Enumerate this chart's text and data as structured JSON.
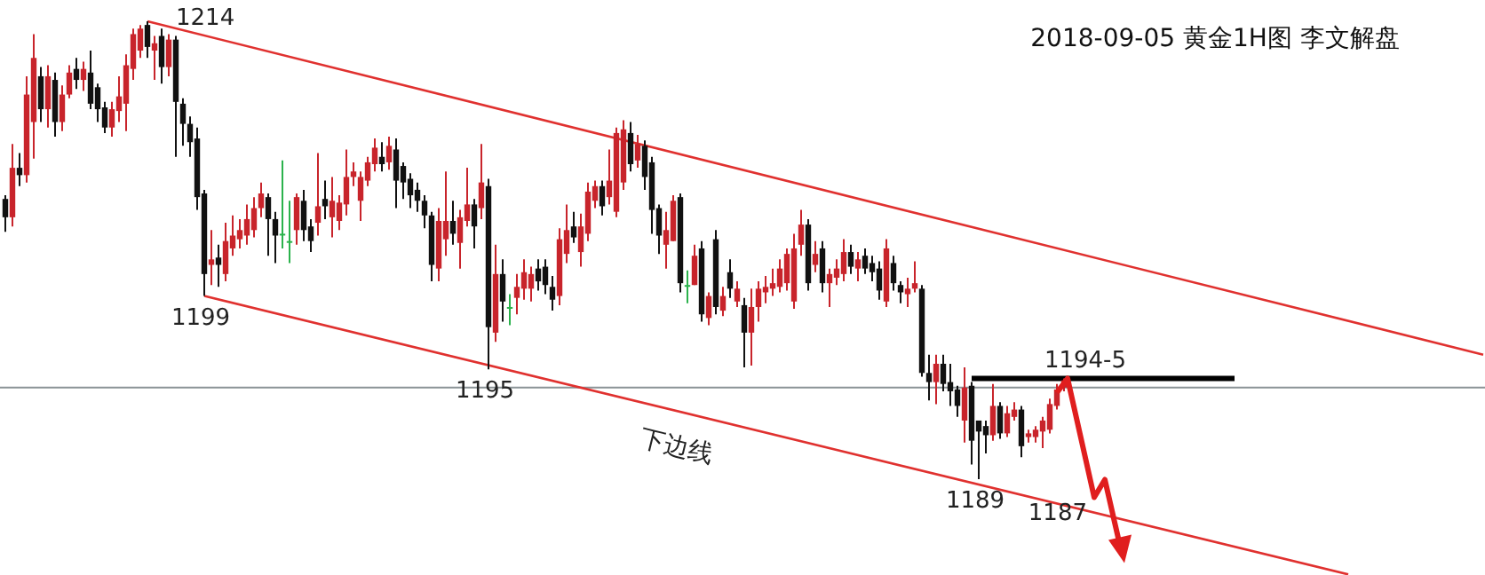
{
  "chart_data": {
    "type": "candlestick",
    "title": "2018-09-05 黄金1H图 李文解盘",
    "categories": [
      null,
      null,
      null,
      null,
      null,
      null,
      null,
      null,
      null,
      null,
      null,
      null,
      null,
      null,
      null,
      null,
      null,
      null,
      null,
      null,
      null,
      null,
      null,
      null,
      null,
      null,
      null,
      null,
      null,
      null,
      null,
      null,
      null,
      null,
      null,
      null,
      null,
      null,
      null,
      null,
      null,
      null,
      null,
      null,
      null,
      null,
      null,
      null,
      null,
      null,
      null,
      null,
      null,
      null,
      null,
      null,
      null,
      null,
      null,
      null,
      null,
      null,
      null,
      null,
      null,
      null,
      null,
      null,
      null,
      null,
      null,
      null,
      null,
      null,
      null,
      null,
      null,
      null,
      null,
      null,
      null,
      null,
      null,
      null,
      null,
      null,
      null,
      null,
      null,
      null,
      null,
      null,
      null,
      null,
      null,
      null,
      null,
      null,
      null,
      null,
      null,
      null,
      null,
      null,
      null,
      null,
      null,
      null,
      null,
      null,
      null,
      null,
      null,
      null,
      null,
      null,
      null,
      null,
      null,
      null,
      null,
      null,
      null,
      null,
      null,
      null,
      null,
      null,
      null,
      null,
      null,
      null,
      null,
      null,
      null,
      null,
      null,
      null,
      null,
      null,
      null,
      null,
      null,
      null,
      null,
      null,
      null,
      null,
      null,
      null,
      null,
      null,
      null,
      null,
      null,
      null,
      null,
      null,
      null,
      null,
      null,
      null,
      null,
      null,
      null,
      null,
      null,
      null,
      null,
      null,
      null,
      null,
      null,
      null,
      null,
      null,
      null,
      null,
      null,
      null,
      null,
      null,
      null,
      null,
      null,
      null,
      null,
      null,
      null,
      null,
      null,
      null,
      null,
      null,
      null,
      null,
      null,
      null,
      null,
      null,
      null,
      null,
      null,
      null,
      null,
      null,
      null,
      null,
      null
    ],
    "ohlc": [
      [
        1204.3,
        1204.5,
        1202.5,
        1203.3
      ],
      [
        1203.3,
        1207.3,
        1202.8,
        1206.0
      ],
      [
        1206.0,
        1206.8,
        1205.0,
        1205.6
      ],
      [
        1205.6,
        1211.0,
        1205.2,
        1210.0
      ],
      [
        1208.5,
        1213.3,
        1206.5,
        1212.0
      ],
      [
        1211.0,
        1211.5,
        1208.5,
        1209.2
      ],
      [
        1209.2,
        1211.6,
        1208.2,
        1211.0
      ],
      [
        1210.8,
        1211.2,
        1207.7,
        1208.5
      ],
      [
        1208.5,
        1210.5,
        1208.0,
        1210.0
      ],
      [
        1210.0,
        1211.6,
        1209.8,
        1211.2
      ],
      [
        1211.4,
        1212.0,
        1210.3,
        1210.8
      ],
      [
        1210.8,
        1211.8,
        1210.2,
        1211.4
      ],
      [
        1211.2,
        1212.4,
        1209.2,
        1209.5
      ],
      [
        1210.4,
        1210.6,
        1208.5,
        1209.2
      ],
      [
        1209.3,
        1209.6,
        1207.9,
        1208.2
      ],
      [
        1208.2,
        1209.6,
        1207.7,
        1209.2
      ],
      [
        1209.1,
        1211.0,
        1208.5,
        1209.9
      ],
      [
        1209.5,
        1212.2,
        1208.0,
        1211.6
      ],
      [
        1211.4,
        1213.6,
        1210.8,
        1213.3
      ],
      [
        1212.4,
        1213.8,
        1212.0,
        1213.6
      ],
      [
        1213.8,
        1214.0,
        1212.0,
        1212.6
      ],
      [
        1212.4,
        1213.2,
        1210.8,
        1212.8
      ],
      [
        1213.2,
        1213.6,
        1210.6,
        1211.5
      ],
      [
        1211.5,
        1213.3,
        1211.0,
        1213.0
      ],
      [
        1213.0,
        1213.2,
        1206.6,
        1209.6
      ],
      [
        1209.5,
        1209.8,
        1207.2,
        1208.4
      ],
      [
        1208.4,
        1208.8,
        1206.6,
        1207.4
      ],
      [
        1207.6,
        1208.2,
        1203.7,
        1204.4
      ],
      [
        1204.6,
        1204.8,
        1199.0,
        1200.2
      ],
      [
        1200.7,
        1202.6,
        1199.6,
        1201.0
      ],
      [
        1201.1,
        1201.8,
        1199.5,
        1200.7
      ],
      [
        1200.2,
        1203.0,
        1199.8,
        1202.0
      ],
      [
        1201.6,
        1203.4,
        1201.2,
        1202.3
      ],
      [
        1202.1,
        1203.2,
        1201.6,
        1202.6
      ],
      [
        1202.3,
        1204.0,
        1201.8,
        1203.2
      ],
      [
        1202.6,
        1204.4,
        1202.2,
        1203.8
      ],
      [
        1203.8,
        1205.2,
        1203.3,
        1204.6
      ],
      [
        1204.4,
        1204.6,
        1201.2,
        1203.2
      ],
      [
        1203.2,
        1203.6,
        1200.8,
        1202.3
      ],
      [
        1202.4,
        1206.4,
        1201.6,
        1202.4
      ],
      [
        1202.0,
        1204.2,
        1200.8,
        1202.0
      ],
      [
        1202.6,
        1204.6,
        1201.8,
        1204.4
      ],
      [
        1204.2,
        1204.8,
        1202.0,
        1202.6
      ],
      [
        1202.8,
        1203.2,
        1201.4,
        1202.0
      ],
      [
        1203.0,
        1206.8,
        1202.3,
        1203.9
      ],
      [
        1204.3,
        1205.3,
        1203.2,
        1203.9
      ],
      [
        1203.3,
        1205.5,
        1202.2,
        1204.2
      ],
      [
        1203.1,
        1204.5,
        1202.6,
        1204.1
      ],
      [
        1204.0,
        1207.0,
        1203.4,
        1205.5
      ],
      [
        1205.5,
        1206.3,
        1205.0,
        1205.8
      ],
      [
        1204.2,
        1205.8,
        1203.1,
        1205.5
      ],
      [
        1205.3,
        1206.6,
        1205.0,
        1206.3
      ],
      [
        1206.2,
        1207.6,
        1205.8,
        1207.1
      ],
      [
        1206.6,
        1207.4,
        1205.8,
        1206.2
      ],
      [
        1206.3,
        1207.7,
        1205.9,
        1207.2
      ],
      [
        1207.0,
        1207.6,
        1203.8,
        1205.3
      ],
      [
        1206.1,
        1206.3,
        1204.3,
        1205.2
      ],
      [
        1205.4,
        1205.7,
        1203.8,
        1204.5
      ],
      [
        1204.8,
        1205.2,
        1203.6,
        1204.2
      ],
      [
        1204.2,
        1204.5,
        1202.7,
        1203.4
      ],
      [
        1203.4,
        1203.6,
        1199.8,
        1200.7
      ],
      [
        1200.5,
        1203.8,
        1199.8,
        1203.1
      ],
      [
        1202.1,
        1205.8,
        1201.2,
        1203.1
      ],
      [
        1203.1,
        1204.2,
        1201.8,
        1202.4
      ],
      [
        1201.9,
        1203.7,
        1200.5,
        1203.3
      ],
      [
        1203.1,
        1206.0,
        1202.8,
        1204.0
      ],
      [
        1204.0,
        1204.3,
        1201.6,
        1202.8
      ],
      [
        1203.8,
        1207.3,
        1203.2,
        1205.2
      ],
      [
        1205.0,
        1205.4,
        1195.0,
        1197.3
      ],
      [
        1197.0,
        1201.8,
        1196.5,
        1200.2
      ],
      [
        1200.2,
        1201.0,
        1197.6,
        1198.7
      ],
      [
        1198.4,
        1199.1,
        1197.4,
        1198.4
      ],
      [
        1198.9,
        1200.2,
        1198.0,
        1199.5
      ],
      [
        1199.4,
        1201.0,
        1198.8,
        1200.3
      ],
      [
        1199.4,
        1200.6,
        1198.7,
        1200.2
      ],
      [
        1200.5,
        1201.0,
        1199.3,
        1199.8
      ],
      [
        1200.6,
        1201.0,
        1199.1,
        1199.6
      ],
      [
        1199.5,
        1200.1,
        1198.2,
        1198.8
      ],
      [
        1199.0,
        1202.7,
        1198.5,
        1202.1
      ],
      [
        1201.3,
        1204.0,
        1200.8,
        1202.6
      ],
      [
        1202.8,
        1203.6,
        1201.9,
        1202.2
      ],
      [
        1201.4,
        1203.5,
        1200.6,
        1202.8
      ],
      [
        1202.4,
        1205.2,
        1202.0,
        1204.7
      ],
      [
        1204.2,
        1205.3,
        1203.8,
        1205.0
      ],
      [
        1205.0,
        1205.3,
        1203.4,
        1203.9
      ],
      [
        1204.4,
        1207.0,
        1204.0,
        1205.3
      ],
      [
        1203.6,
        1208.2,
        1203.3,
        1207.9
      ],
      [
        1205.2,
        1208.6,
        1204.8,
        1208.1
      ],
      [
        1207.9,
        1208.5,
        1205.8,
        1206.2
      ],
      [
        1206.4,
        1207.8,
        1206.0,
        1207.3
      ],
      [
        1207.2,
        1207.5,
        1204.8,
        1205.5
      ],
      [
        1206.3,
        1206.6,
        1202.4,
        1203.7
      ],
      [
        1203.8,
        1204.0,
        1201.3,
        1202.3
      ],
      [
        1201.8,
        1203.6,
        1200.5,
        1202.6
      ],
      [
        1202.0,
        1204.5,
        1202.0,
        1204.2
      ],
      [
        1204.4,
        1204.6,
        1199.2,
        1199.7
      ],
      [
        1199.6,
        1200.4,
        1198.6,
        1199.6
      ],
      [
        1199.6,
        1201.8,
        1199.6,
        1201.2
      ],
      [
        1201.6,
        1202.0,
        1197.6,
        1198.0
      ],
      [
        1197.8,
        1199.2,
        1197.4,
        1199.0
      ],
      [
        1202.1,
        1202.6,
        1198.0,
        1198.4
      ],
      [
        1198.2,
        1199.5,
        1197.9,
        1199.0
      ],
      [
        1200.3,
        1201.0,
        1198.9,
        1199.4
      ],
      [
        1198.7,
        1199.8,
        1198.4,
        1199.4
      ],
      [
        1198.5,
        1198.9,
        1195.1,
        1197.0
      ],
      [
        1197.0,
        1199.4,
        1195.2,
        1198.4
      ],
      [
        1198.4,
        1199.8,
        1197.6,
        1199.4
      ],
      [
        1199.2,
        1200.1,
        1198.6,
        1199.5
      ],
      [
        1199.4,
        1200.5,
        1199.0,
        1199.7
      ],
      [
        1199.5,
        1201.0,
        1199.2,
        1200.5
      ],
      [
        1199.7,
        1201.6,
        1199.3,
        1201.3
      ],
      [
        1198.7,
        1202.4,
        1198.3,
        1201.6
      ],
      [
        1201.8,
        1203.7,
        1201.2,
        1202.9
      ],
      [
        1202.9,
        1203.2,
        1199.3,
        1199.7
      ],
      [
        1200.7,
        1202.0,
        1200.3,
        1201.3
      ],
      [
        1201.6,
        1202.0,
        1199.2,
        1199.7
      ],
      [
        1199.7,
        1200.5,
        1198.4,
        1200.2
      ],
      [
        1200.0,
        1201.0,
        1199.6,
        1200.5
      ],
      [
        1200.2,
        1202.1,
        1199.8,
        1201.4
      ],
      [
        1201.4,
        1201.8,
        1200.2,
        1200.6
      ],
      [
        1200.5,
        1201.4,
        1199.8,
        1201.0
      ],
      [
        1201.2,
        1201.6,
        1200.2,
        1200.5
      ],
      [
        1200.8,
        1201.2,
        1199.8,
        1200.3
      ],
      [
        1200.5,
        1200.9,
        1198.8,
        1199.3
      ],
      [
        1198.7,
        1202.1,
        1198.4,
        1201.6
      ],
      [
        1200.8,
        1201.2,
        1199.3,
        1199.7
      ],
      [
        1199.6,
        1199.8,
        1198.6,
        1199.2
      ],
      [
        1199.1,
        1200.0,
        1198.4,
        1199.4
      ],
      [
        1199.4,
        1200.9,
        1199.2,
        1199.7
      ],
      [
        1199.4,
        1199.6,
        1194.6,
        1194.8
      ],
      [
        1194.8,
        1195.8,
        1193.3,
        1194.3
      ],
      [
        1194.3,
        1195.8,
        1193.1,
        1195.3
      ],
      [
        1195.3,
        1195.8,
        1193.8,
        1194.2
      ],
      [
        1194.3,
        1195.3,
        1193.0,
        1193.8
      ],
      [
        1193.9,
        1194.1,
        1192.4,
        1193.0
      ],
      [
        1192.2,
        1195.1,
        1191.0,
        1194.0
      ],
      [
        1194.1,
        1194.3,
        1189.8,
        1191.1
      ],
      [
        1192.2,
        1192.2,
        1189.0,
        1191.6
      ],
      [
        1191.9,
        1192.2,
        1190.4,
        1191.4
      ],
      [
        1191.4,
        1194.2,
        1191.1,
        1193.0
      ],
      [
        1193.0,
        1193.2,
        1191.2,
        1191.5
      ],
      [
        1191.5,
        1193.0,
        1191.3,
        1192.6
      ],
      [
        1192.4,
        1193.2,
        1192.2,
        1192.8
      ],
      [
        1192.8,
        1193.0,
        1190.2,
        1190.8
      ],
      [
        1191.3,
        1191.7,
        1191.0,
        1191.5
      ],
      [
        1191.3,
        1191.9,
        1191.0,
        1191.7
      ],
      [
        1191.6,
        1192.4,
        1190.7,
        1192.2
      ],
      [
        1191.7,
        1193.4,
        1191.5,
        1193.1
      ],
      [
        1193.0,
        1194.2,
        1192.8,
        1193.9
      ],
      [
        1194.0,
        1194.5,
        1193.8,
        1194.4
      ],
      null,
      null,
      null,
      null,
      null,
      null,
      null,
      null,
      null,
      null,
      null,
      null,
      null,
      null,
      null,
      null,
      null,
      null,
      null,
      null,
      null,
      null,
      null,
      null,
      null,
      null,
      null,
      null,
      null,
      null,
      null,
      null,
      null,
      null,
      null,
      null,
      null,
      null,
      null,
      null,
      null,
      null,
      null,
      null,
      null,
      null,
      null,
      null,
      null,
      null,
      null,
      null,
      null,
      null,
      null,
      null,
      null,
      null,
      null
    ],
    "colors": [
      "#111111",
      "#c8242b",
      "#111111",
      "#c8242b",
      "#c8242b",
      "#111111",
      "#c8242b",
      "#111111",
      "#c8242b",
      "#c8242b",
      "#111111",
      "#c8242b",
      "#111111",
      "#111111",
      "#111111",
      "#c8242b",
      "#c8242b",
      "#c8242b",
      "#c8242b",
      "#c8242b",
      "#111111",
      "#c8242b",
      "#111111",
      "#c8242b",
      "#111111",
      "#111111",
      "#111111",
      "#111111",
      "#111111",
      "#c8242b",
      "#111111",
      "#c8242b",
      "#c8242b",
      "#c8242b",
      "#c8242b",
      "#c8242b",
      "#c8242b",
      "#111111",
      "#111111",
      "#2bb24c",
      "#2bb24c",
      "#c8242b",
      "#111111",
      "#111111",
      "#c8242b",
      "#111111",
      "#c8242b",
      "#c8242b",
      "#c8242b",
      "#c8242b",
      "#c8242b",
      "#c8242b",
      "#c8242b",
      "#111111",
      "#c8242b",
      "#111111",
      "#111111",
      "#111111",
      "#111111",
      "#111111",
      "#111111",
      "#c8242b",
      "#c8242b",
      "#111111",
      "#c8242b",
      "#c8242b",
      "#111111",
      "#c8242b",
      "#111111",
      "#c8242b",
      "#111111",
      "#2bb24c",
      "#c8242b",
      "#c8242b",
      "#c8242b",
      "#111111",
      "#111111",
      "#111111",
      "#c8242b",
      "#c8242b",
      "#111111",
      "#c8242b",
      "#c8242b",
      "#c8242b",
      "#111111",
      "#c8242b",
      "#c8242b",
      "#c8242b",
      "#111111",
      "#c8242b",
      "#111111",
      "#111111",
      "#111111",
      "#c8242b",
      "#c8242b",
      "#111111",
      "#2bb24c",
      "#c8242b",
      "#111111",
      "#c8242b",
      "#111111",
      "#c8242b",
      "#111111",
      "#c8242b",
      "#111111",
      "#c8242b",
      "#c8242b",
      "#c8242b",
      "#c8242b",
      "#c8242b",
      "#c8242b",
      "#c8242b",
      "#c8242b",
      "#111111",
      "#c8242b",
      "#111111",
      "#c8242b",
      "#c8242b",
      "#c8242b",
      "#111111",
      "#c8242b",
      "#111111",
      "#111111",
      "#111111",
      "#c8242b",
      "#111111",
      "#111111",
      "#c8242b",
      "#c8242b",
      "#111111",
      "#111111",
      "#c8242b",
      "#111111",
      "#111111",
      "#111111",
      "#c8242b",
      "#111111",
      "#111111",
      "#111111",
      "#c8242b",
      "#111111",
      "#c8242b",
      "#c8242b",
      "#111111",
      "#c8242b",
      "#c8242b",
      "#c8242b",
      "#c8242b",
      "#c8242b",
      "#c8242b",
      null,
      null,
      null,
      null,
      null,
      null,
      null,
      null,
      null,
      null,
      null,
      null,
      null,
      null,
      null,
      null,
      null,
      null,
      null,
      null,
      null,
      null,
      null,
      null,
      null,
      null,
      null,
      null,
      null,
      null,
      null,
      null,
      null,
      null,
      null,
      null,
      null,
      null,
      null,
      null,
      null,
      null,
      null,
      null,
      null,
      null,
      null,
      null,
      null,
      null,
      null,
      null,
      null,
      null,
      null,
      null,
      null,
      null,
      null
    ],
    "series": [
      {
        "type": "line",
        "color": "#e0312f",
        "values": [
          null,
          null,
          null,
          null,
          null,
          null,
          null,
          null,
          null,
          null,
          null,
          null,
          null,
          null,
          null,
          null,
          null,
          null,
          null,
          null,
          1214.0,
          null,
          null,
          null,
          null,
          null,
          null,
          null,
          null,
          null,
          null,
          null,
          null,
          null,
          null,
          null,
          null,
          null,
          null,
          null,
          null,
          null,
          null,
          null,
          null,
          null,
          null,
          null,
          null,
          null,
          null,
          null,
          null,
          null,
          null,
          null,
          null,
          null,
          null,
          null,
          null,
          null,
          null,
          null,
          null,
          null,
          null,
          null,
          null,
          null,
          null,
          null,
          null,
          null,
          null,
          null,
          null,
          null,
          null,
          null,
          null,
          null,
          null,
          null,
          null,
          null,
          null,
          null,
          null,
          null,
          null,
          null,
          null,
          null,
          null,
          null,
          null,
          null,
          null,
          null,
          null,
          null,
          null,
          null,
          null,
          null,
          null,
          null,
          null,
          null,
          null,
          null,
          null,
          null,
          null,
          null,
          null,
          null,
          null,
          null,
          null,
          null,
          null,
          null,
          null,
          null,
          null,
          null,
          null,
          null,
          null,
          null,
          null,
          null,
          null,
          null,
          null,
          null,
          null,
          null,
          null,
          null,
          null,
          null,
          null,
          null,
          null,
          null,
          null,
          null,
          null,
          null,
          null,
          null,
          null,
          null,
          null,
          null,
          null,
          null,
          null,
          null,
          null,
          null,
          null,
          null,
          null,
          null,
          null,
          null,
          null,
          null,
          null,
          null,
          null,
          null,
          null,
          null,
          null,
          null,
          null,
          null,
          null,
          null,
          null,
          null,
          null,
          null,
          null,
          null,
          null,
          null,
          null,
          null,
          null,
          null,
          null,
          null,
          null,
          null,
          null,
          null,
          null,
          null,
          null,
          null,
          null,
          null,
          1195.8
        ]
      },
      {
        "type": "line",
        "color": "#e0312f",
        "values": [
          null,
          null,
          null,
          null,
          null,
          null,
          null,
          null,
          null,
          null,
          null,
          null,
          null,
          null,
          null,
          null,
          null,
          null,
          null,
          null,
          null,
          null,
          null,
          null,
          null,
          null,
          null,
          null,
          1199.0,
          null,
          null,
          null,
          null,
          null,
          null,
          null,
          null,
          null,
          null,
          null,
          null,
          null,
          null,
          null,
          null,
          null,
          null,
          null,
          null,
          null,
          null,
          null,
          null,
          null,
          null,
          null,
          null,
          null,
          null,
          null,
          null,
          null,
          null,
          null,
          null,
          null,
          null,
          null,
          null,
          null,
          null,
          null,
          null,
          null,
          null,
          null,
          null,
          null,
          null,
          null,
          null,
          null,
          null,
          null,
          null,
          null,
          null,
          null,
          null,
          null,
          null,
          null,
          null,
          null,
          null,
          null,
          null,
          null,
          null,
          null,
          null,
          null,
          null,
          null,
          null,
          null,
          null,
          null,
          null,
          null,
          null,
          null,
          null,
          null,
          null,
          null,
          null,
          null,
          null,
          null,
          null,
          null,
          null,
          null,
          null,
          null,
          null,
          null,
          null,
          null,
          null,
          null,
          null,
          null,
          null,
          null,
          null,
          null,
          null,
          null,
          null,
          null,
          null,
          null,
          null,
          null,
          null,
          null,
          null,
          null,
          null,
          null,
          null,
          null,
          null,
          null,
          null,
          null,
          null,
          null,
          null,
          null,
          null,
          null,
          null,
          null,
          null,
          null,
          null,
          null,
          null,
          null,
          null,
          null,
          null,
          null,
          null,
          null,
          null,
          null,
          null,
          null,
          null,
          null,
          null,
          null,
          null,
          null,
          null,
          1183.8,
          null,
          null,
          null,
          null,
          null,
          null,
          null,
          null,
          null,
          null,
          null,
          null,
          null,
          null,
          null,
          null,
          null,
          null,
          null
        ]
      }
    ],
    "ref_lines": [
      {
        "axis": "y",
        "value": 1194.0,
        "color": "#8a9396"
      },
      {
        "axis": "y",
        "value": 1194.5,
        "label": "1194-5",
        "color": "#000000"
      }
    ],
    "annotations": [
      "1214",
      {
        "text": "1199",
        "y": 1199
      },
      {
        "text": "1195",
        "y": 1195
      },
      {
        "text": "1189",
        "y": 1189
      },
      "1187",
      "下边线"
    ]
  }
}
